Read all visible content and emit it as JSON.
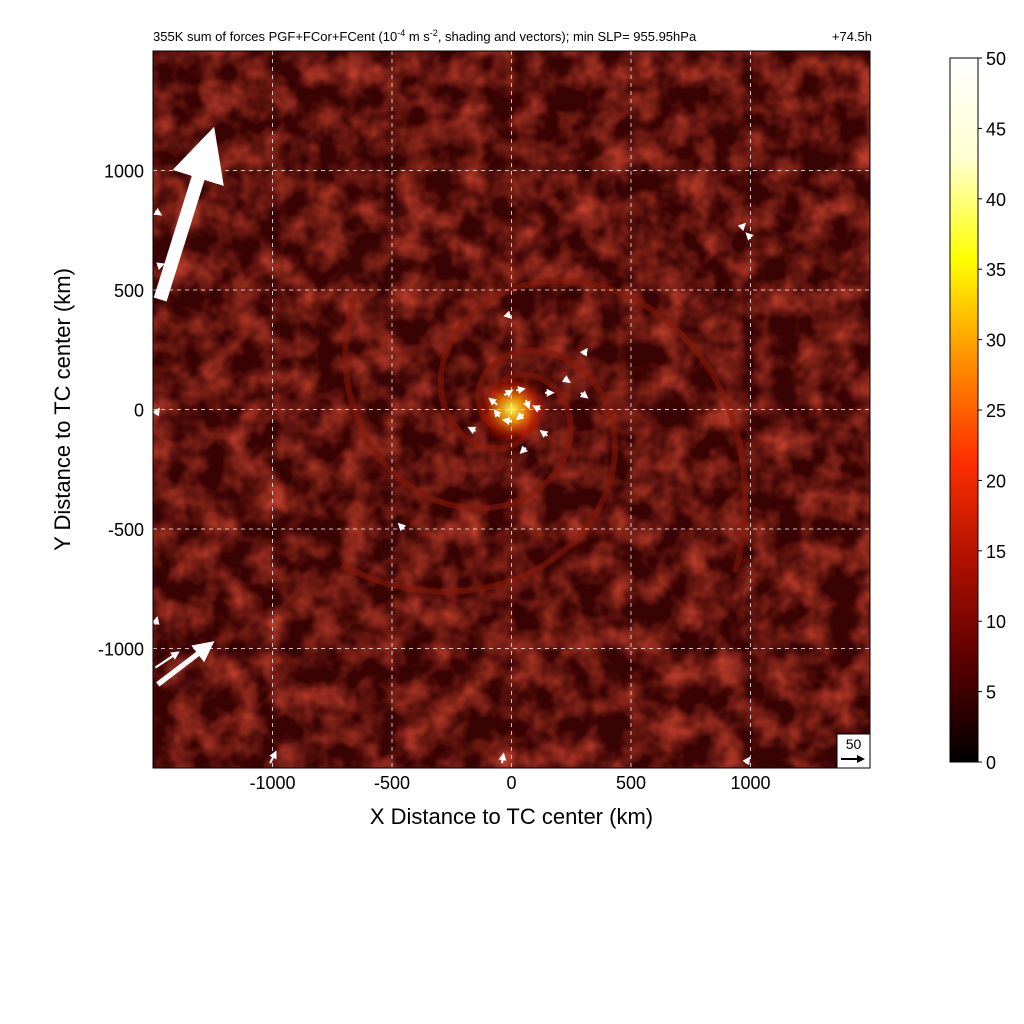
{
  "chart_data": {
    "type": "heatmap",
    "title": "355K sum of forces PGF+FCor+FCent (10",
    "title_exp1": "-4",
    "title_mid": " m s",
    "title_exp2": "-2",
    "title_end": ", shading and vectors); min SLP= 955.95hPa",
    "time_label": "+74.5h",
    "xlabel": "X Distance to TC center (km)",
    "ylabel": "Y Distance to TC center (km)",
    "xlim": [
      -1500,
      1500
    ],
    "ylim": [
      -1500,
      1500
    ],
    "x_ticks": [
      -1000,
      -500,
      0,
      500,
      1000
    ],
    "y_ticks": [
      -1000,
      -500,
      0,
      500,
      1000
    ],
    "x_tick_labels": [
      "-1000",
      "-500",
      "0",
      "500",
      "1000"
    ],
    "y_tick_labels": [
      "-1000",
      "-500",
      "0",
      "500",
      "1000"
    ],
    "grid": true,
    "colorbar": {
      "min": 0,
      "max": 50,
      "ticks": [
        0,
        5,
        10,
        15,
        20,
        25,
        30,
        35,
        40,
        45,
        50
      ],
      "tick_labels": [
        "0",
        "5",
        "10",
        "15",
        "20",
        "25",
        "30",
        "35",
        "40",
        "45",
        "50"
      ],
      "colormap": [
        "#000000",
        "#5a0000",
        "#b01000",
        "#ff3000",
        "#ff9000",
        "#ffff00",
        "#ffffd0",
        "#ffffff"
      ]
    },
    "reference_vector": {
      "label": "50",
      "value": 50
    },
    "background_color": "#3a0303",
    "spiral_band_color": "#8a1a0a",
    "vectors": [
      {
        "x": -1470,
        "y": 460,
        "u": 200,
        "v": 640
      },
      {
        "x": -1480,
        "y": -1150,
        "u": 210,
        "v": 160
      },
      {
        "x": -1490,
        "y": -1080,
        "u": 90,
        "v": 60
      },
      {
        "x": -1010,
        "y": -1480,
        "u": 20,
        "v": 40
      },
      {
        "x": -60,
        "y": 20,
        "u": -25,
        "v": 20
      },
      {
        "x": -30,
        "y": 60,
        "u": 25,
        "v": 15
      },
      {
        "x": 20,
        "y": 80,
        "u": 25,
        "v": 5
      },
      {
        "x": 60,
        "y": 40,
        "u": 10,
        "v": -25
      },
      {
        "x": 50,
        "y": -20,
        "u": -20,
        "v": -15
      },
      {
        "x": 0,
        "y": -50,
        "u": -25,
        "v": 5
      },
      {
        "x": -50,
        "y": -30,
        "u": -15,
        "v": 20
      },
      {
        "x": 120,
        "y": 0,
        "u": -20,
        "v": 10
      },
      {
        "x": 140,
        "y": 70,
        "u": 25,
        "v": 0
      },
      {
        "x": 220,
        "y": 130,
        "u": 15,
        "v": -10
      },
      {
        "x": 290,
        "y": 70,
        "u": 20,
        "v": -15
      },
      {
        "x": 300,
        "y": 230,
        "u": 10,
        "v": 15
      },
      {
        "x": -20,
        "y": 400,
        "u": 10,
        "v": -10
      },
      {
        "x": -150,
        "y": -90,
        "u": -20,
        "v": 10
      },
      {
        "x": 60,
        "y": -160,
        "u": -15,
        "v": -15
      },
      {
        "x": 150,
        "y": -110,
        "u": -20,
        "v": 15
      },
      {
        "x": -450,
        "y": -500,
        "u": -15,
        "v": 15
      },
      {
        "x": 960,
        "y": 760,
        "u": 10,
        "v": 10
      },
      {
        "x": 1000,
        "y": 720,
        "u": -10,
        "v": 10
      },
      {
        "x": -1490,
        "y": 830,
        "u": 15,
        "v": -10
      },
      {
        "x": -1480,
        "y": 600,
        "u": 15,
        "v": 5
      },
      {
        "x": -1490,
        "y": -20,
        "u": 10,
        "v": 15
      },
      {
        "x": -1490,
        "y": -900,
        "u": 5,
        "v": 20
      },
      {
        "x": -40,
        "y": -1480,
        "u": 5,
        "v": 30
      },
      {
        "x": 980,
        "y": -1480,
        "u": 10,
        "v": 15
      }
    ]
  }
}
